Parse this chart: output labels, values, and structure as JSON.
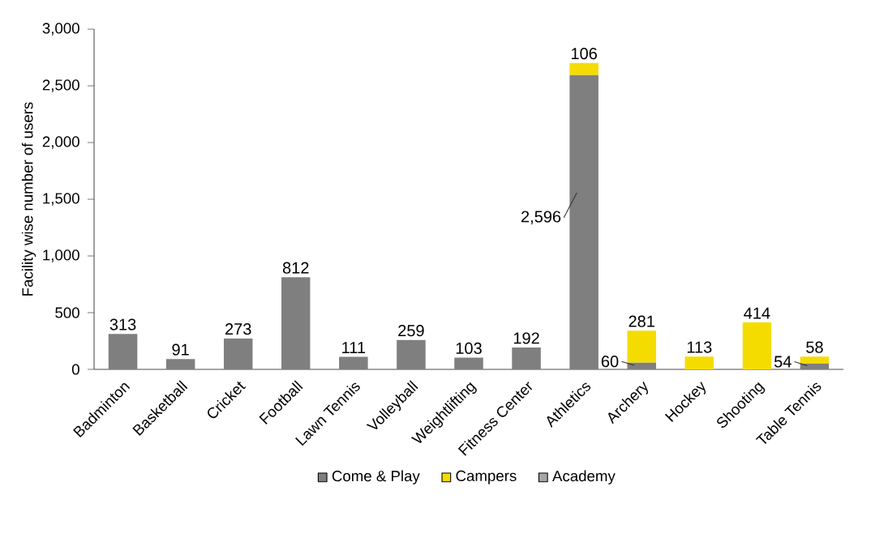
{
  "chart_data": {
    "type": "bar",
    "stacked": true,
    "ylabel": "Facility wise number of users",
    "categories": [
      "Badminton",
      "Basketball",
      "Cricket",
      "Football",
      "Lawn Tennis",
      "Volleyball",
      "Weightlifting",
      "Fitness Center",
      "Athletics",
      "Archery",
      "Hockey",
      "Shooting",
      "Table Tennis"
    ],
    "series": [
      {
        "name": "Come & Play",
        "color": "#7f7f7f",
        "values": [
          313,
          91,
          273,
          812,
          111,
          259,
          103,
          192,
          2596,
          60,
          null,
          null,
          54
        ],
        "value_labels": [
          "313",
          "91",
          "273",
          "812",
          "111",
          "259",
          "103",
          "192",
          "2,596",
          "60",
          null,
          null,
          "54"
        ]
      },
      {
        "name": "Campers",
        "color": "#f5dc00",
        "values": [
          null,
          null,
          null,
          null,
          null,
          null,
          null,
          null,
          106,
          281,
          113,
          414,
          58
        ]
      },
      {
        "name": "Academy",
        "color": "#a5a5a5",
        "values": [
          null,
          null,
          null,
          null,
          null,
          null,
          null,
          null,
          null,
          null,
          null,
          null,
          null
        ]
      }
    ],
    "ylim": [
      0,
      3000
    ],
    "yticks": [
      0,
      500,
      {
        "value": 1000,
        "label": "1,000"
      },
      {
        "value": 1500,
        "label": "1,500"
      },
      {
        "value": 2000,
        "label": "2,000"
      },
      {
        "value": 2500,
        "label": "2,500"
      },
      {
        "value": 3000,
        "label": "3,000"
      }
    ],
    "data_labels": true,
    "legend": "bottom",
    "grid": false
  }
}
